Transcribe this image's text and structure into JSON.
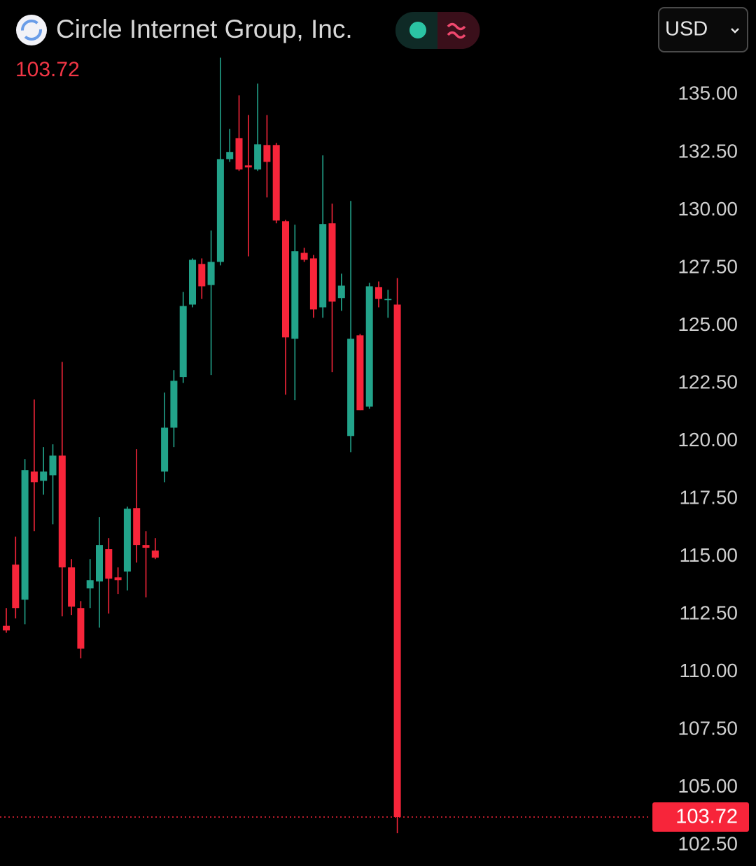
{
  "chart_data": {
    "type": "candlestick",
    "title": "Circle Internet Group, Inc.",
    "currency": "USD",
    "last_price": 103.72,
    "up_color": "#22a38a",
    "down_color": "#f7253a",
    "ylim": [
      101.6,
      139.1
    ],
    "yticks": [
      {
        "value": 135,
        "label": "135.00"
      },
      {
        "value": 132.5,
        "label": "132.50"
      },
      {
        "value": 130,
        "label": "130.00"
      },
      {
        "value": 127.5,
        "label": "127.50"
      },
      {
        "value": 125,
        "label": "125.00"
      },
      {
        "value": 122.5,
        "label": "122.50"
      },
      {
        "value": 120,
        "label": "120.00"
      },
      {
        "value": 117.5,
        "label": "117.50"
      },
      {
        "value": 115,
        "label": "115.00"
      },
      {
        "value": 112.5,
        "label": "112.50"
      },
      {
        "value": 110,
        "label": "110.00"
      },
      {
        "value": 107.5,
        "label": "107.50"
      },
      {
        "value": 105,
        "label": "105.00"
      },
      {
        "value": 102.5,
        "label": "102.50"
      }
    ],
    "open": [
      112.0,
      114.65,
      113.13,
      118.68,
      118.28,
      118.52,
      119.37,
      114.53,
      112.77,
      113.62,
      113.92,
      115.32,
      114.1,
      114.35,
      117.1,
      115.5,
      115.26,
      118.68,
      120.58,
      122.77,
      125.91,
      127.67,
      126.76,
      127.76,
      132.21,
      133.12,
      131.94,
      131.76,
      132.82,
      132.82,
      129.52,
      124.43,
      128.15,
      127.91,
      125.79,
      129.43,
      126.19,
      120.22,
      124.58,
      121.49,
      126.67,
      126.1,
      125.91
    ],
    "high": [
      112.77,
      115.86,
      119.22,
      121.8,
      119.74,
      119.86,
      123.43,
      114.89,
      113.07,
      114.89,
      116.71,
      115.8,
      114.53,
      117.16,
      119.65,
      116.1,
      115.8,
      122.1,
      123.07,
      126.46,
      127.91,
      127.91,
      129.12,
      136.6,
      133.52,
      134.97,
      134.12,
      135.48,
      134.12,
      132.91,
      129.58,
      129.37,
      128.37,
      128.06,
      132.37,
      130.28,
      127.25,
      130.4,
      124.64,
      126.85,
      126.91,
      126.55,
      127.06
    ],
    "low": [
      111.7,
      112.32,
      112.07,
      116.1,
      117.68,
      116.4,
      112.41,
      112.47,
      110.59,
      112.77,
      111.92,
      112.53,
      113.38,
      113.53,
      114.74,
      113.23,
      114.89,
      118.22,
      119.74,
      122.52,
      125.79,
      126.16,
      122.86,
      127.61,
      132.09,
      131.7,
      128.0,
      131.7,
      130.55,
      129.43,
      122.01,
      121.77,
      127.76,
      125.34,
      125.34,
      122.98,
      125.64,
      119.52,
      121.34,
      121.4,
      125.79,
      125.34,
      103.02
    ],
    "close": [
      111.8,
      112.77,
      118.74,
      118.22,
      118.68,
      119.37,
      114.53,
      112.83,
      111.01,
      113.98,
      115.5,
      114.04,
      113.98,
      117.07,
      115.5,
      115.38,
      114.95,
      120.58,
      122.61,
      125.85,
      127.85,
      126.7,
      127.76,
      132.21,
      132.52,
      131.76,
      131.85,
      132.85,
      132.09,
      129.55,
      124.49,
      128.22,
      127.85,
      125.7,
      129.4,
      126.04,
      126.73,
      124.43,
      121.34,
      126.7,
      126.16,
      126.16,
      103.72
    ]
  }
}
